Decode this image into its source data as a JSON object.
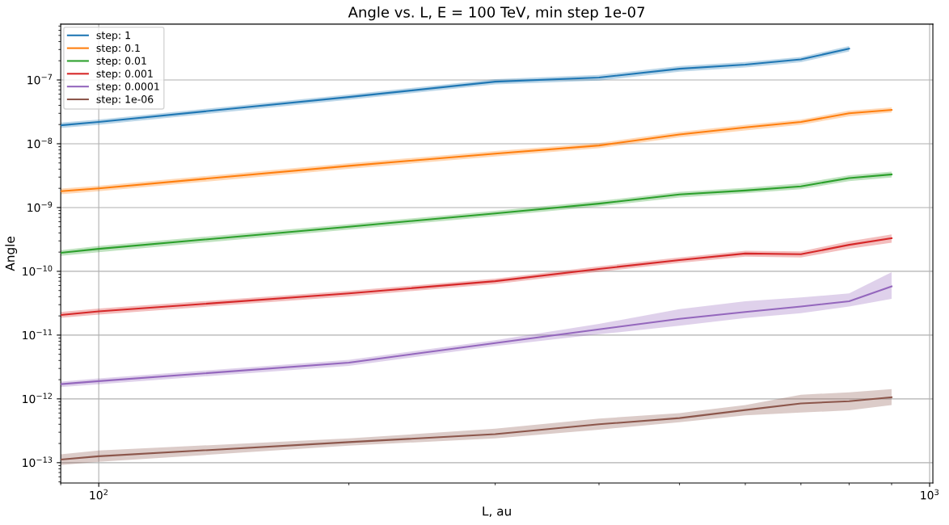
{
  "chart_data": {
    "type": "line",
    "title": "Angle vs. L, E = 100 TeV, min step 1e-07",
    "xlabel": "L, au",
    "ylabel": "Angle",
    "x": [
      90,
      100,
      200,
      300,
      400,
      500,
      600,
      700,
      800,
      900
    ],
    "log": "xy",
    "grid": true,
    "legend": "top left",
    "xlim": [
      90,
      1009
    ],
    "ylim": [
      4.8e-14,
      7.5e-07
    ],
    "xticks": [
      {
        "value": 100,
        "label": "10$^{2}$"
      },
      {
        "value": 1000,
        "label": "10$^{3}$"
      }
    ],
    "yticks": [
      {
        "value": 1e-13,
        "label": "10$^{−13}$"
      },
      {
        "value": 1e-12,
        "label": "10$^{−12}$"
      },
      {
        "value": 1e-11,
        "label": "10$^{−11}$"
      },
      {
        "value": 1e-10,
        "label": "10$^{−10}$"
      },
      {
        "value": 1e-09,
        "label": "10$^{−9}$"
      },
      {
        "value": 1e-08,
        "label": "10$^{−8}$"
      },
      {
        "value": 1e-07,
        "label": "10$^{−7}$"
      }
    ],
    "series": [
      {
        "name": "step: 1",
        "color": "#1f77b4",
        "x": [
          90,
          100,
          200,
          300,
          400,
          500,
          600,
          700,
          800
        ],
        "values": [
          1.95e-08,
          2.2e-08,
          5.4e-08,
          9.4e-08,
          1.09e-07,
          1.5e-07,
          1.74e-07,
          2.1e-07,
          3.1e-07
        ],
        "lower": [
          1.76e-08,
          1.98e-08,
          4.9e-08,
          8.5e-08,
          9.8e-08,
          1.35e-07,
          1.57e-07,
          1.9e-07,
          2.8e-07
        ],
        "upper": [
          2.15e-08,
          2.4e-08,
          5.9e-08,
          1.03e-07,
          1.2e-07,
          1.65e-07,
          1.91e-07,
          2.3e-07,
          3.4e-07
        ]
      },
      {
        "name": "step: 0.1",
        "color": "#ff7f0e",
        "values": [
          1.8e-09,
          2e-09,
          4.5e-09,
          7e-09,
          9.4e-09,
          1.4e-08,
          1.8e-08,
          2.2e-08,
          3e-08,
          3.4e-08
        ],
        "lower": [
          1.62e-09,
          1.8e-09,
          4.05e-09,
          6.3e-09,
          8.5e-09,
          1.26e-08,
          1.62e-08,
          1.98e-08,
          2.7e-08,
          3.1e-08
        ],
        "upper": [
          1.98e-09,
          2.2e-09,
          4.95e-09,
          7.7e-09,
          1.03e-08,
          1.54e-08,
          1.98e-08,
          2.4e-08,
          3.3e-08,
          3.7e-08
        ]
      },
      {
        "name": "step: 0.01",
        "color": "#2ca02c",
        "values": [
          1.95e-10,
          2.25e-10,
          5e-10,
          8.1e-10,
          1.15e-09,
          1.6e-09,
          1.85e-09,
          2.15e-09,
          2.9e-09,
          3.3e-09
        ],
        "lower": [
          1.75e-10,
          2e-10,
          4.5e-10,
          7.3e-10,
          1.04e-09,
          1.44e-09,
          1.67e-09,
          1.94e-09,
          2.6e-09,
          2.95e-09
        ],
        "upper": [
          2.15e-10,
          2.5e-10,
          5.5e-10,
          8.9e-10,
          1.27e-09,
          1.76e-09,
          2.04e-09,
          2.4e-09,
          3.2e-09,
          3.65e-09
        ]
      },
      {
        "name": "step: 0.001",
        "color": "#d62728",
        "values": [
          2.07e-11,
          2.35e-11,
          4.5e-11,
          7e-11,
          1.09e-10,
          1.5e-10,
          1.9e-10,
          1.85e-10,
          2.6e-10,
          3.3e-10
        ],
        "lower": [
          1.86e-11,
          2.1e-11,
          4.05e-11,
          6.3e-11,
          9.8e-11,
          1.35e-10,
          1.7e-10,
          1.65e-10,
          2.25e-10,
          2.8e-10
        ],
        "upper": [
          2.3e-11,
          2.6e-11,
          4.95e-11,
          7.7e-11,
          1.2e-10,
          1.65e-10,
          2.1e-10,
          2.05e-10,
          2.95e-10,
          3.8e-10
        ]
      },
      {
        "name": "step: 0.0001",
        "color": "#9467bd",
        "values": [
          1.7e-12,
          1.9e-12,
          3.7e-12,
          7.5e-12,
          1.23e-11,
          1.8e-11,
          2.3e-11,
          2.8e-11,
          3.4e-11,
          5.8e-11
        ],
        "lower": [
          1.53e-12,
          1.7e-12,
          3.3e-12,
          6.7e-12,
          1.03e-11,
          1.4e-11,
          1.85e-11,
          2.2e-11,
          2.8e-11,
          3.7e-11
        ],
        "upper": [
          1.87e-12,
          2.1e-12,
          4.1e-12,
          8.3e-12,
          1.5e-11,
          2.55e-11,
          3.4e-11,
          3.9e-11,
          4.5e-11,
          9.7e-11
        ]
      },
      {
        "name": "step: 1e-06",
        "color": "#8c564b",
        "values": [
          1.12e-13,
          1.26e-13,
          2.1e-13,
          2.8e-13,
          4e-13,
          5e-13,
          6.7e-13,
          8.5e-13,
          9.2e-13,
          1.06e-12
        ],
        "lower": [
          9.2e-14,
          1.03e-13,
          1.85e-13,
          2.4e-13,
          3.3e-13,
          4.3e-13,
          5.5e-13,
          6.1e-13,
          6.6e-13,
          8e-13
        ],
        "upper": [
          1.35e-13,
          1.55e-13,
          2.4e-13,
          3.4e-13,
          4.9e-13,
          6e-13,
          8e-13,
          1.16e-12,
          1.27e-12,
          1.42e-12
        ]
      }
    ]
  }
}
